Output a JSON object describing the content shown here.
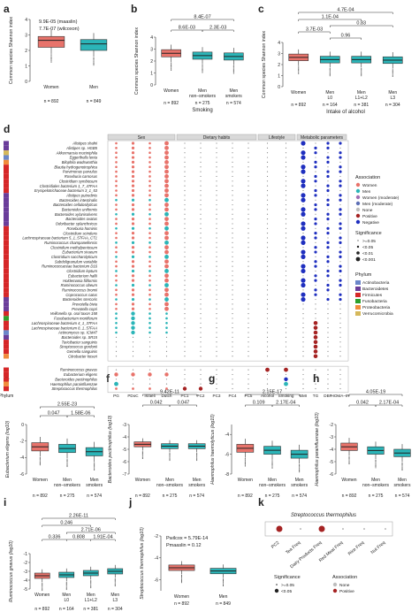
{
  "colors": {
    "women": "#e8736b",
    "men": "#2bb5b8",
    "women_mod": "#a26fb3",
    "men_mod": "#5d6fb5",
    "none": "#bdbdbd",
    "positive": "#a52323",
    "negative": "#1f2fbf",
    "actino": "#6b86c9",
    "bacteroid": "#6a3d9a",
    "firmi": "#d62728",
    "fuso": "#2ca02c",
    "proteo": "#f08c3c",
    "verruco": "#d5b85b"
  },
  "panel_letters": {
    "a": "a",
    "b": "b",
    "c": "c",
    "d": "d",
    "e": "e",
    "f": "f",
    "g": "g",
    "h": "h",
    "i": "i",
    "j": "j",
    "k": "k"
  },
  "chart_data": [
    {
      "id": "a",
      "type": "box",
      "ylabel": "Common species Shannon index",
      "categories": [
        "Women",
        "Men"
      ],
      "n": [
        "n = 892",
        "n = 849"
      ],
      "stats": [
        "9.9E-05 (maaslin)",
        "7.7E-07 (wilcoxon)"
      ],
      "medians": [
        2.65,
        2.42
      ],
      "q1": [
        2.2,
        2.0
      ],
      "q3": [
        2.9,
        2.7
      ]
    },
    {
      "id": "b",
      "type": "box",
      "ylabel": "Common species Shannon index",
      "xlabel": "Smoking",
      "categories": [
        "Women",
        "Men non–smokers",
        "Men smokers"
      ],
      "n": [
        "n = 892",
        "n = 275",
        "n = 574"
      ],
      "brackets": [
        "8.4E-07",
        "8.6E-03",
        "2.3E-03"
      ],
      "medians": [
        2.65,
        2.45,
        2.38
      ]
    },
    {
      "id": "c",
      "type": "box",
      "ylabel": "Common species Shannon index",
      "xlabel": "Intake of alcohol",
      "categories": [
        "Women",
        "Men L0",
        "Men L1+L2",
        "Men L3"
      ],
      "n": [
        "n = 892",
        "n = 164",
        "n = 381",
        "n = 304"
      ],
      "brackets": [
        "4.7E-04",
        "1.1E-04",
        "0.83",
        "3.7E-03",
        "0.96"
      ],
      "medians": [
        2.65,
        2.45,
        2.45,
        2.4
      ]
    },
    {
      "id": "d",
      "type": "dotmatrix",
      "groups": [
        "Sex",
        "Dietary habits",
        "Lifestyle",
        "Metabolic parameters"
      ],
      "columns": [
        "PG",
        "PDoC",
        "Israeli",
        "Dutch",
        "PC1",
        "PC2",
        "PC3",
        "PC4",
        "PC5",
        "Alcohol",
        "Smoking",
        "BMI",
        "TG",
        "DBP",
        "HOMA–IR"
      ],
      "x_title": "Phylum",
      "species_top": [
        "Alistipes shahii",
        "Alistipes sp. HGB5",
        "Akkermansia muciniphila",
        "Eggerthella lenta",
        "Bilophila wadsworthia",
        "Blautia hydrogenotrophica",
        "Parvimonas parvulus",
        "Roseburia carnosus",
        "Clostridium symbiosum",
        "Clostridiales bacterium 1_7_47FAA",
        "Erysipelotrichaceae bacterium 3_1_53",
        "Alistipes putredinis",
        "Bacteroides intestinalis",
        "Bacteroides cellulosilyticus",
        "Bacteroides uniformis",
        "Bacteroides xylanisolvens",
        "Bacteroides ovatus",
        "Odoribacter splanchnicus",
        "Roseburia hominis",
        "Clostridium scindens",
        "Lachnospiraceae bacterium 5_1_57FAA_CT1",
        "Ruminococcus champanellensis",
        "Clostridium methylpentosum",
        "Eubacterium siraeum",
        "Clostridium saccharolyticum",
        "Subdoligranulum variabile",
        "Ruminococcaceae bacterium D16",
        "Clostridium leptum",
        "Eubacterium hallii",
        "Holdemania filiformis",
        "Ruminococcus obeum",
        "Ruminococcus bromii",
        "Coprococcus catus",
        "Bacteroides stercoris",
        "Prevotella bivia",
        "Prevotella copri",
        "Veillonella sp. oral taxon 158",
        "Fusobacterium mortiferum",
        "Lachnospiraceae bacterium 4_1_37FAA",
        "Lachnospiraceae bacterium 8_1_57FAA",
        "Actinomyces sp. ICM47",
        "Bacteroides sp. SR15",
        "Turicibacter sanguinis",
        "Streptococcus gordonii",
        "Gemella sanguinis",
        "Citrobacter koseri"
      ],
      "species_bottom": [
        "Ruminococcus gnavus",
        "Eubacterium eligens",
        "Bacteroides pectinophilus",
        "Haemophilus parainfluenzae",
        "Streptococcus thermophilus"
      ],
      "legend_assoc_title": "Association",
      "legend_assoc": [
        "Women",
        "Men",
        "Women (moderate)",
        "Men (moderate)",
        "None",
        "Positive",
        "Negative"
      ],
      "legend_sig_title": "Significance",
      "legend_sig": [
        ">=0.05",
        "<0.05",
        "<0.01",
        "<0.001"
      ],
      "legend_phylum_title": "Phylum",
      "legend_phylum": [
        "Actinobacteria",
        "Bacteroidetes",
        "Firmicutes",
        "Fusobacteria",
        "Proteobacteria",
        "Verrucomicrobia"
      ]
    },
    {
      "id": "e",
      "type": "box",
      "ylabel": "Eubacterium eligens (log10)",
      "categories": [
        "Women",
        "Men non–smokers",
        "Men smokers"
      ],
      "n": [
        "n = 892",
        "n = 275",
        "n = 574"
      ],
      "brackets": [
        "2.55E-23",
        "0.047",
        "1.58E-06"
      ],
      "medians": [
        -2.7,
        -2.9,
        -3.3
      ]
    },
    {
      "id": "f",
      "type": "box",
      "ylabel": "Bacteroides pectinophilus (log10)",
      "categories": [
        "Women",
        "Men non–smokers",
        "Men smokers"
      ],
      "n": [
        "n = 892",
        "n = 275",
        "n = 574"
      ],
      "brackets": [
        "9.42E-11",
        "0.042",
        "0.047"
      ],
      "medians": [
        -4.6,
        -4.75,
        -4.75
      ]
    },
    {
      "id": "g",
      "type": "box",
      "ylabel": "Haemophilus haemolyticus (log10)",
      "categories": [
        "Women",
        "Men non–smokers",
        "Men smokers"
      ],
      "n": [
        "n = 892",
        "n = 275",
        "n = 574"
      ],
      "brackets": [
        "2.15E-17",
        "0.109",
        "2.17E-04"
      ],
      "medians": [
        -5.4,
        -5.6,
        -6.0
      ]
    },
    {
      "id": "h",
      "type": "box",
      "ylabel": "Haemophilus parainfluenzae (log10)",
      "categories": [
        "Women",
        "Men non–smokers",
        "Men smokers"
      ],
      "n": [
        "n = 892",
        "n = 275",
        "n = 574"
      ],
      "brackets": [
        "4.05E-19",
        "0.042",
        "2.17E-04"
      ],
      "medians": [
        -3.8,
        -4.1,
        -4.3
      ]
    },
    {
      "id": "i",
      "type": "box",
      "ylabel": "Ruminococcus gnavus (log10)",
      "categories": [
        "Women",
        "Men L0",
        "Men L1+L2",
        "Men L3"
      ],
      "n": [
        "n = 892",
        "n = 164",
        "n = 381",
        "n = 304"
      ],
      "brackets": [
        "2.26E-11",
        "0.246",
        "2.71E-06",
        "0.336",
        "0.808",
        "1.91E-04"
      ],
      "medians": [
        -3.5,
        -3.4,
        -3.2,
        -3.0
      ]
    },
    {
      "id": "j",
      "type": "box",
      "ylabel": "Streptococcus thermophilus (log10)",
      "categories": [
        "Women",
        "Men"
      ],
      "n": [
        "n = 892",
        "n = 849"
      ],
      "stats": [
        "Pwilcox = 5.79E-14",
        "Pmaaslin = 0.12"
      ],
      "medians": [
        -4.9,
        -5.2
      ]
    },
    {
      "id": "k",
      "type": "dotrow",
      "title": "Streptococcus thermophilus",
      "columns": [
        "PC2",
        "Tea Freq",
        "Dairy Products Freq",
        "Red Meat Freq",
        "Rice Freq",
        "Nut Freq"
      ],
      "values": [
        "positive",
        "none",
        "positive",
        "none",
        "none",
        "none"
      ],
      "legend_sig_title": "Significance",
      "legend_sig": [
        ">=0.05",
        "<0.05"
      ],
      "legend_assoc_title": "Association",
      "legend_assoc": [
        "None",
        "Positive"
      ]
    }
  ]
}
